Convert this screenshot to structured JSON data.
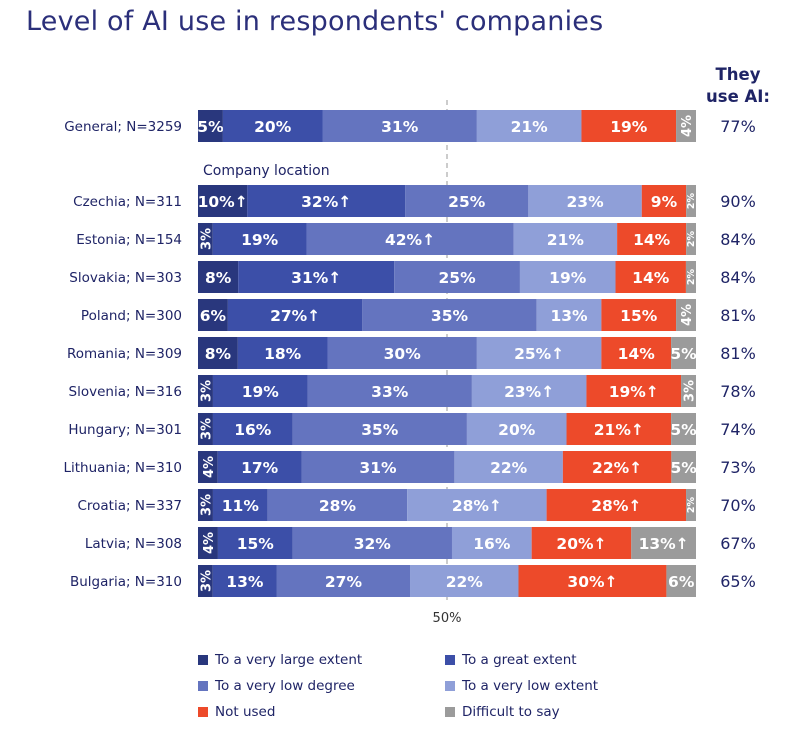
{
  "title": "Level of AI use in respondents' companies",
  "ai_header": "They use AI:",
  "group_label": "Company location",
  "fifty_label": "50%",
  "colors": {
    "very_large": "#29377d",
    "great": "#3c4fa8",
    "very_low_degree": "#6474bf",
    "very_low_extent": "#8f9fd8",
    "not_used": "#ed4a2a",
    "difficult": "#9b9b9b"
  },
  "chart_data": {
    "type": "bar",
    "stacked": true,
    "orientation": "horizontal",
    "title": "Level of AI use in respondents' companies",
    "xlim": [
      0,
      100
    ],
    "categories": [
      "General; N=3259",
      "Czechia; N=311",
      "Estonia; N=154",
      "Slovakia; N=303",
      "Poland; N=300",
      "Romania; N=309",
      "Slovenia; N=316",
      "Hungary; N=301",
      "Lithuania; N=310",
      "Croatia; N=337",
      "Latvia; N=308",
      "Bulgaria; N=310"
    ],
    "series": [
      {
        "name": "To a very large extent",
        "key": "very_large",
        "values": [
          5,
          10,
          3,
          8,
          6,
          8,
          3,
          3,
          4,
          3,
          4,
          3
        ],
        "labels": [
          "5%",
          "10%↑",
          "3%",
          "8%",
          "6%",
          "8%",
          "3%",
          "3%",
          "4%",
          "3%",
          "4%",
          "3%"
        ]
      },
      {
        "name": "To a great extent",
        "key": "great",
        "values": [
          20,
          32,
          19,
          31,
          27,
          18,
          19,
          16,
          17,
          11,
          15,
          13
        ],
        "labels": [
          "20%",
          "32%↑",
          "19%",
          "31%↑",
          "27%↑",
          "18%",
          "19%",
          "16%",
          "17%",
          "11%",
          "15%",
          "13%"
        ]
      },
      {
        "name": "To a very low degree",
        "key": "very_low_degree",
        "values": [
          31,
          25,
          42,
          25,
          35,
          30,
          33,
          35,
          31,
          28,
          32,
          27
        ],
        "labels": [
          "31%",
          "25%",
          "42%↑",
          "25%",
          "35%",
          "30%",
          "33%",
          "35%",
          "31%",
          "28%",
          "32%",
          "27%"
        ]
      },
      {
        "name": "To a very low extent",
        "key": "very_low_extent",
        "values": [
          21,
          23,
          21,
          19,
          13,
          25,
          23,
          20,
          22,
          28,
          16,
          22
        ],
        "labels": [
          "21%",
          "23%",
          "21%",
          "19%",
          "13%",
          "25%↑",
          "23%↑",
          "20%",
          "22%",
          "28%↑",
          "16%",
          "22%"
        ]
      },
      {
        "name": "Not used",
        "key": "not_used",
        "values": [
          19,
          9,
          14,
          14,
          15,
          14,
          19,
          21,
          22,
          28,
          20,
          30
        ],
        "labels": [
          "19%",
          "9%",
          "14%",
          "14%",
          "15%",
          "14%",
          "19%↑",
          "21%↑",
          "22%↑",
          "28%↑",
          "20%↑",
          "30%↑"
        ]
      },
      {
        "name": "Difficult to say",
        "key": "difficult",
        "values": [
          4,
          2,
          2,
          2,
          4,
          5,
          3,
          5,
          5,
          2,
          13,
          6
        ],
        "labels": [
          "4%",
          "2%",
          "2%",
          "2%",
          "4%",
          "5%",
          "3%",
          "5%",
          "5%",
          "2%",
          "13%↑",
          "6%"
        ]
      }
    ],
    "they_use_ai": [
      "77%",
      "90%",
      "84%",
      "84%",
      "81%",
      "81%",
      "78%",
      "74%",
      "73%",
      "70%",
      "67%",
      "65%"
    ],
    "legend": [
      {
        "label": "To a very large extent",
        "key": "very_large"
      },
      {
        "label": "To a great extent",
        "key": "great"
      },
      {
        "label": "To a very low degree",
        "key": "very_low_degree"
      },
      {
        "label": "To a very low extent",
        "key": "very_low_extent"
      },
      {
        "label": "Not used",
        "key": "not_used"
      },
      {
        "label": "Difficult to say",
        "key": "difficult"
      }
    ]
  }
}
